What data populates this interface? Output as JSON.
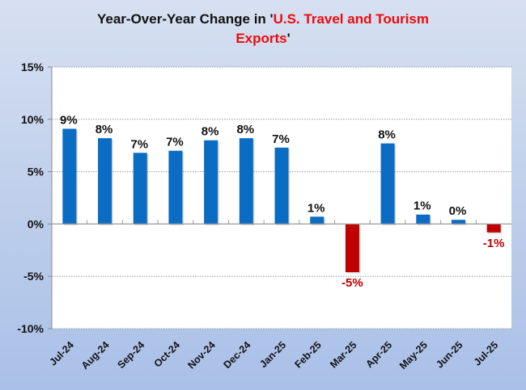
{
  "chart_data": {
    "type": "bar",
    "title_parts": {
      "prefix": "Year-Over-Year Change in '",
      "highlight_line1": "U.S. Travel and Tourism",
      "highlight_line2": "Exports",
      "suffix": "'"
    },
    "title": "Year-Over-Year Change in 'U.S. Travel and Tourism Exports'",
    "xlabel": "",
    "ylabel": "",
    "ylim": [
      -10,
      15
    ],
    "yticks": [
      15,
      10,
      5,
      0,
      -5,
      -10
    ],
    "ytick_labels": [
      "15%",
      "10%",
      "5%",
      "0%",
      "-5%",
      "-10%"
    ],
    "grid": true,
    "legend": "none",
    "categories": [
      "Jul-24",
      "Aug-24",
      "Sep-24",
      "Oct-24",
      "Nov-24",
      "Dec-24",
      "Jan-25",
      "Feb-25",
      "Mar-25",
      "Apr-25",
      "May-25",
      "Jun-25",
      "Jul-25"
    ],
    "values": [
      9.1,
      8.2,
      6.8,
      7.0,
      8.0,
      8.2,
      7.3,
      0.7,
      -4.6,
      7.7,
      0.9,
      0.4,
      -0.8
    ],
    "data_labels": [
      "9%",
      "8%",
      "7%",
      "7%",
      "8%",
      "8%",
      "7%",
      "1%",
      "-5%",
      "8%",
      "1%",
      "0%",
      "-1%"
    ],
    "colors": {
      "positive": "#0b6cc4",
      "negative": "#c00000",
      "negative_label": "#c00000",
      "positive_label": "#111111",
      "title_highlight": "#ee0a0a"
    }
  }
}
